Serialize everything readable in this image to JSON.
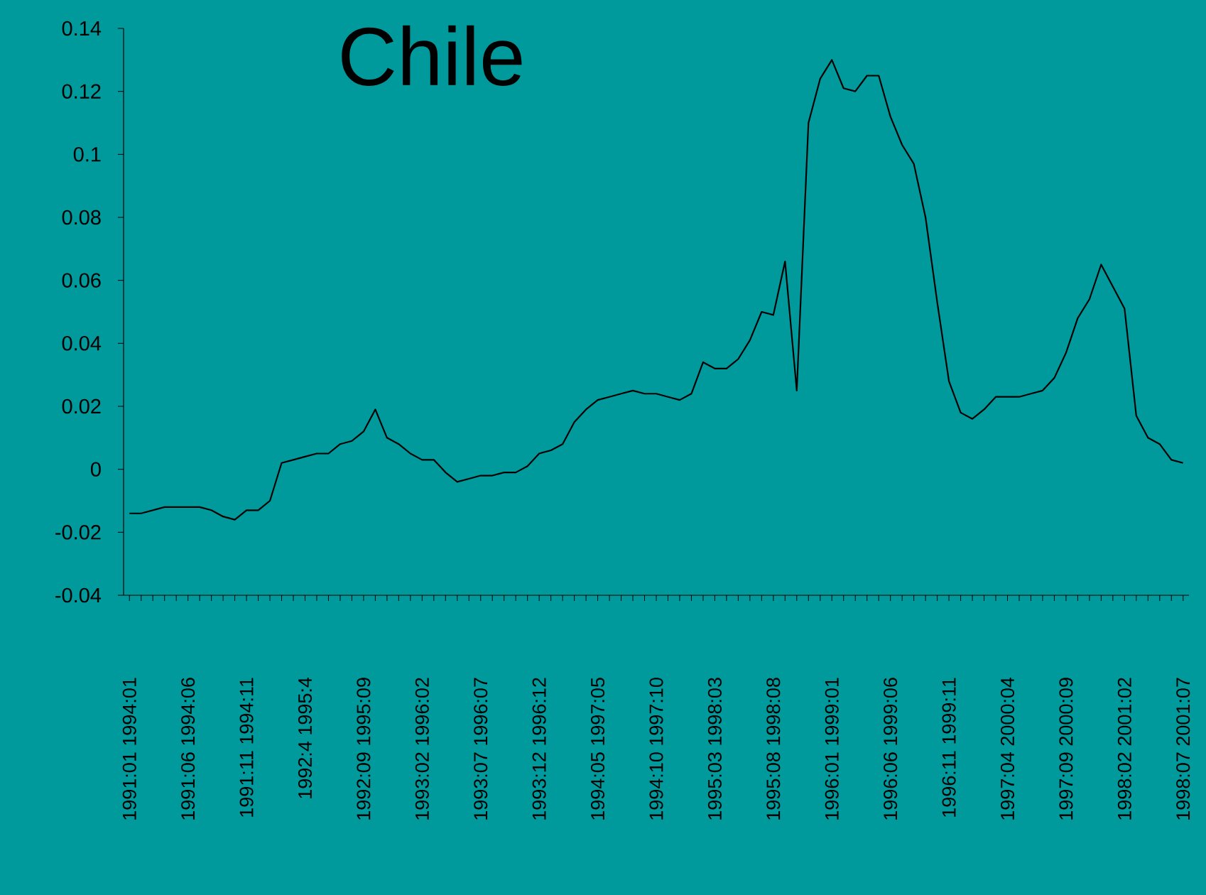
{
  "chart_data": {
    "type": "line",
    "title": "Chile",
    "categories": [
      "1991:01 1994:01",
      null,
      null,
      null,
      null,
      "1991:06 1994:06",
      null,
      null,
      null,
      null,
      "1991:11 1994:11",
      null,
      null,
      null,
      null,
      "1992:4 1995:4",
      null,
      null,
      null,
      null,
      "1992:09 1995:09",
      null,
      null,
      null,
      null,
      "1993:02 1996:02",
      null,
      null,
      null,
      null,
      "1993:07 1996:07",
      null,
      null,
      null,
      null,
      "1993:12 1996:12",
      null,
      null,
      null,
      null,
      "1994:05 1997:05",
      null,
      null,
      null,
      null,
      "1994:10 1997:10",
      null,
      null,
      null,
      null,
      "1995:03 1998:03",
      null,
      null,
      null,
      null,
      "1995:08 1998:08",
      null,
      null,
      null,
      null,
      "1996:01 1999:01",
      null,
      null,
      null,
      null,
      "1996:06 1999:06",
      null,
      null,
      null,
      null,
      "1996:11 1999:11",
      null,
      null,
      null,
      null,
      "1997:04 2000:04",
      null,
      null,
      null,
      null,
      "1997:09 2000:09",
      null,
      null,
      null,
      null,
      "1998:02 2001:02",
      null,
      null,
      null,
      null,
      "1998:07 2001:07"
    ],
    "values": [
      -0.014,
      -0.014,
      -0.013,
      -0.012,
      -0.012,
      -0.012,
      -0.012,
      -0.013,
      -0.015,
      -0.016,
      -0.013,
      -0.013,
      -0.01,
      0.002,
      0.003,
      0.004,
      0.005,
      0.005,
      0.008,
      0.009,
      0.012,
      0.019,
      0.01,
      0.008,
      0.005,
      0.003,
      0.003,
      -0.001,
      -0.004,
      -0.003,
      -0.002,
      -0.002,
      -0.001,
      -0.001,
      0.001,
      0.005,
      0.006,
      0.008,
      0.015,
      0.019,
      0.022,
      0.023,
      0.024,
      0.025,
      0.024,
      0.024,
      0.023,
      0.022,
      0.024,
      0.034,
      0.032,
      0.032,
      0.035,
      0.041,
      0.05,
      0.049,
      0.066,
      0.025,
      0.11,
      0.124,
      0.13,
      0.121,
      0.12,
      0.125,
      0.125,
      0.112,
      0.103,
      0.097,
      0.08,
      0.053,
      0.028,
      0.018,
      0.016,
      0.019,
      0.023,
      0.023,
      0.023,
      0.024,
      0.025,
      0.029,
      0.037,
      0.048,
      0.054,
      0.065,
      0.058,
      0.051,
      0.017,
      0.01,
      0.008,
      0.003,
      0.002
    ],
    "color": "#000000",
    "marker": "none",
    "line_style": "solid",
    "ylim": [
      -0.04,
      0.14
    ],
    "yticks": [
      -0.04,
      -0.02,
      0,
      0.02,
      0.04,
      0.06,
      0.08,
      0.1,
      0.12,
      0.14
    ]
  }
}
